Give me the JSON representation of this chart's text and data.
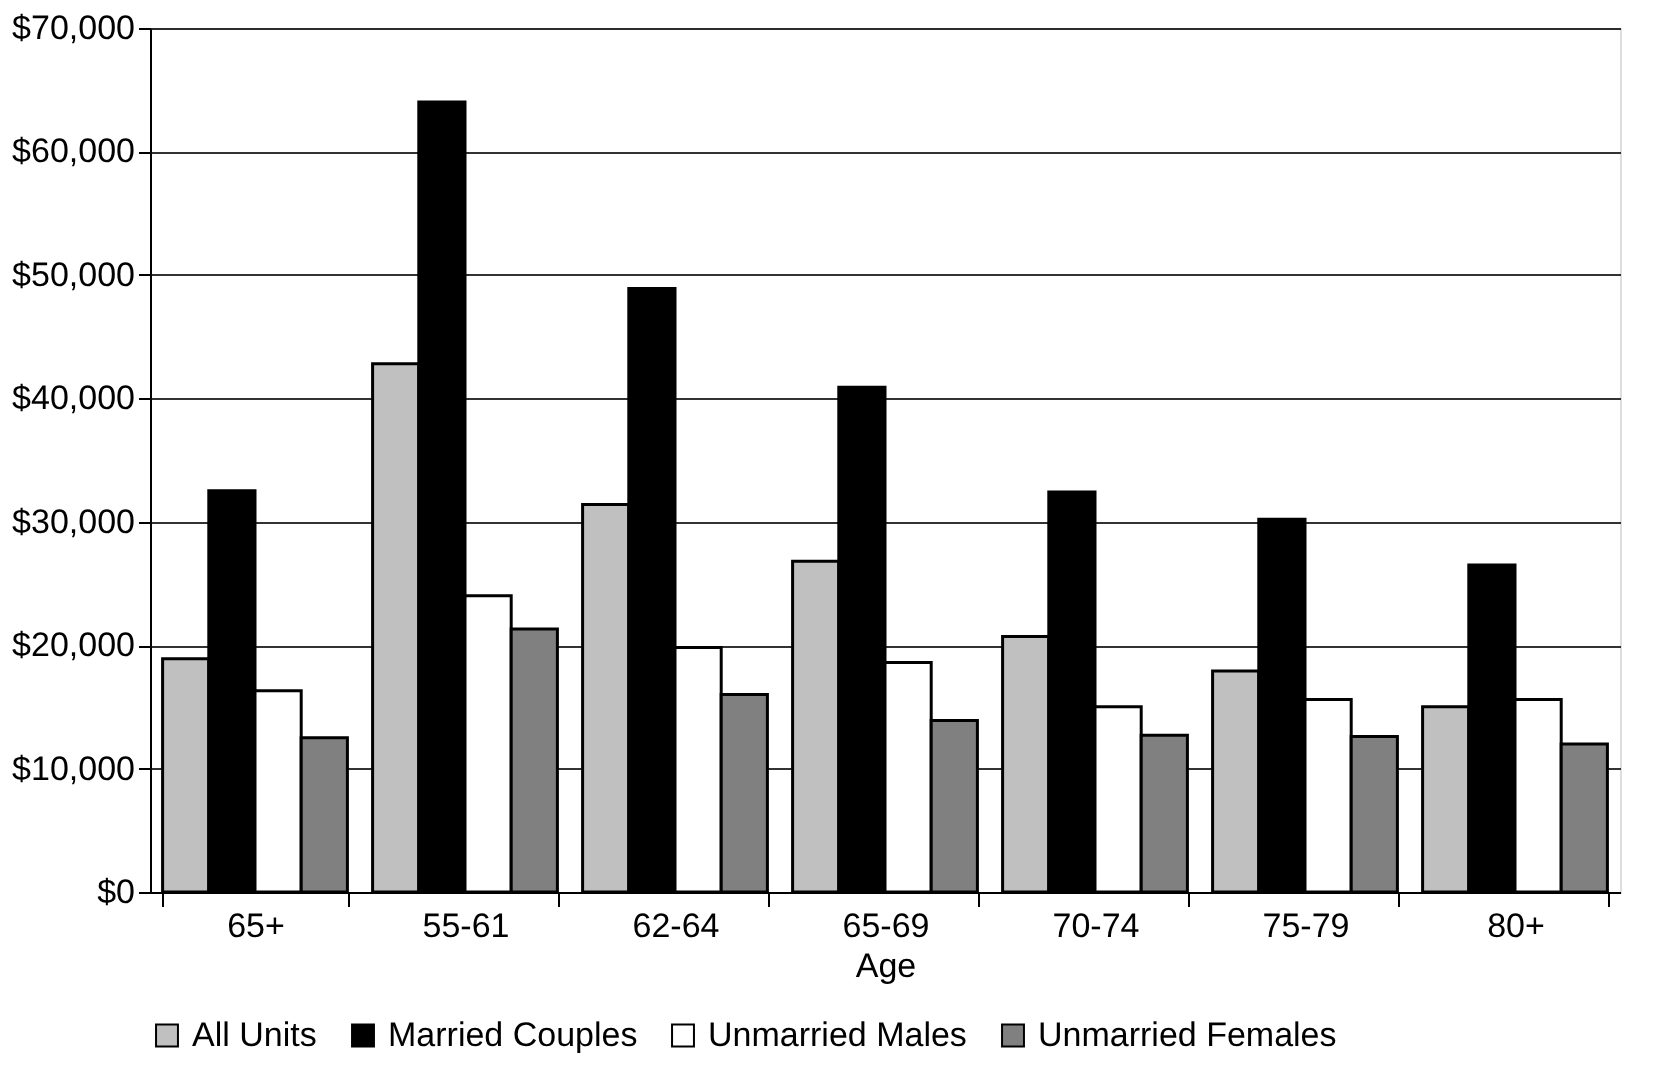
{
  "chart_data": {
    "type": "bar",
    "xlabel": "Age",
    "categories": [
      "65+",
      "55-61",
      "62-64",
      "65-69",
      "70-74",
      "75-79",
      "80+"
    ],
    "series": [
      {
        "name": "All Units",
        "color": "#c0c0c0",
        "values": [
          18900,
          42800,
          31400,
          26800,
          20700,
          17900,
          15000
        ]
      },
      {
        "name": "Married Couples",
        "color": "#000000",
        "values": [
          32500,
          64000,
          48900,
          40900,
          32400,
          30200,
          26500
        ]
      },
      {
        "name": "Unmarried Males",
        "color": "#ffffff",
        "values": [
          16300,
          24000,
          19800,
          18600,
          15000,
          15600,
          15600
        ]
      },
      {
        "name": "Unmarried Females",
        "color": "#808080",
        "values": [
          12500,
          21300,
          16000,
          13900,
          12700,
          12600,
          12000
        ]
      }
    ],
    "ylim": [
      0,
      70000
    ],
    "yticks": [
      {
        "value": 0,
        "label": "$0"
      },
      {
        "value": 10000,
        "label": "$10,000"
      },
      {
        "value": 20000,
        "label": "$20,000"
      },
      {
        "value": 30000,
        "label": "$30,000"
      },
      {
        "value": 40000,
        "label": "$40,000"
      },
      {
        "value": 50000,
        "label": "$50,000"
      },
      {
        "value": 60000,
        "label": "$60,000"
      },
      {
        "value": 70000,
        "label": "$70,000"
      }
    ],
    "grid": "y",
    "legend": "bottom"
  }
}
